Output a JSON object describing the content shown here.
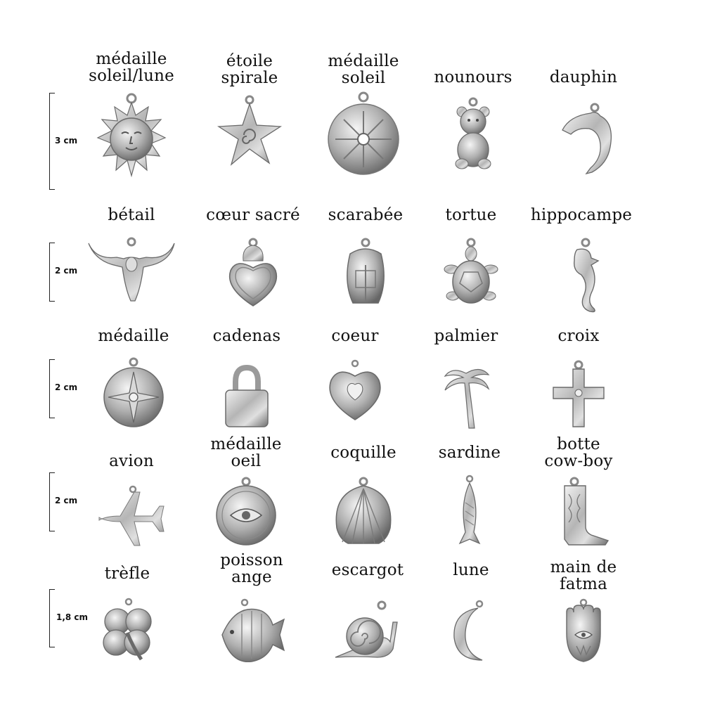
{
  "sizes": [
    "3 cm",
    "2 cm",
    "2 cm",
    "2 cm",
    "1,8 cm"
  ],
  "rows": [
    {
      "items": [
        {
          "lines": [
            "médaille",
            "soleil/lune"
          ],
          "icon": "sun-moon-medallion-icon"
        },
        {
          "lines": [
            "étoile",
            "spirale"
          ],
          "icon": "spiral-star-icon"
        },
        {
          "lines": [
            "médaille",
            "soleil"
          ],
          "icon": "sun-medallion-icon"
        },
        {
          "lines": [
            "nounours"
          ],
          "icon": "teddy-bear-icon"
        },
        {
          "lines": [
            "dauphin"
          ],
          "icon": "dolphin-icon"
        }
      ]
    },
    {
      "items": [
        {
          "lines": [
            "bétail"
          ],
          "icon": "bull-skull-icon"
        },
        {
          "lines": [
            "cœur sacré"
          ],
          "icon": "sacred-heart-icon"
        },
        {
          "lines": [
            "scarabée"
          ],
          "icon": "scarab-icon"
        },
        {
          "lines": [
            "tortue"
          ],
          "icon": "turtle-icon"
        },
        {
          "lines": [
            "hippocampe"
          ],
          "icon": "seahorse-icon"
        }
      ]
    },
    {
      "items": [
        {
          "lines": [
            "médaille"
          ],
          "icon": "compass-medallion-icon"
        },
        {
          "lines": [
            "cadenas"
          ],
          "icon": "padlock-icon"
        },
        {
          "lines": [
            "coeur"
          ],
          "icon": "heart-icon"
        },
        {
          "lines": [
            "palmier"
          ],
          "icon": "palm-tree-icon"
        },
        {
          "lines": [
            "croix"
          ],
          "icon": "cross-icon"
        }
      ]
    },
    {
      "items": [
        {
          "lines": [
            "avion"
          ],
          "icon": "airplane-icon"
        },
        {
          "lines": [
            "médaille",
            "oeil"
          ],
          "icon": "eye-medallion-icon"
        },
        {
          "lines": [
            "coquille"
          ],
          "icon": "seashell-icon"
        },
        {
          "lines": [
            "sardine"
          ],
          "icon": "sardine-icon"
        },
        {
          "lines": [
            "botte",
            "cow-boy"
          ],
          "icon": "cowboy-boot-icon"
        }
      ]
    },
    {
      "items": [
        {
          "lines": [
            "trèfle"
          ],
          "icon": "clover-icon"
        },
        {
          "lines": [
            "poisson",
            "ange"
          ],
          "icon": "angelfish-icon"
        },
        {
          "lines": [
            "escargot"
          ],
          "icon": "snail-icon"
        },
        {
          "lines": [
            "lune"
          ],
          "icon": "crescent-moon-icon"
        },
        {
          "lines": [
            "main de",
            "fatma"
          ],
          "icon": "hamsa-hand-icon"
        }
      ]
    }
  ],
  "colors": {
    "silver_light": "#e6e6e6",
    "silver_mid": "#a9a9a9",
    "silver_dark": "#5e5e5e",
    "text": "#111111"
  }
}
